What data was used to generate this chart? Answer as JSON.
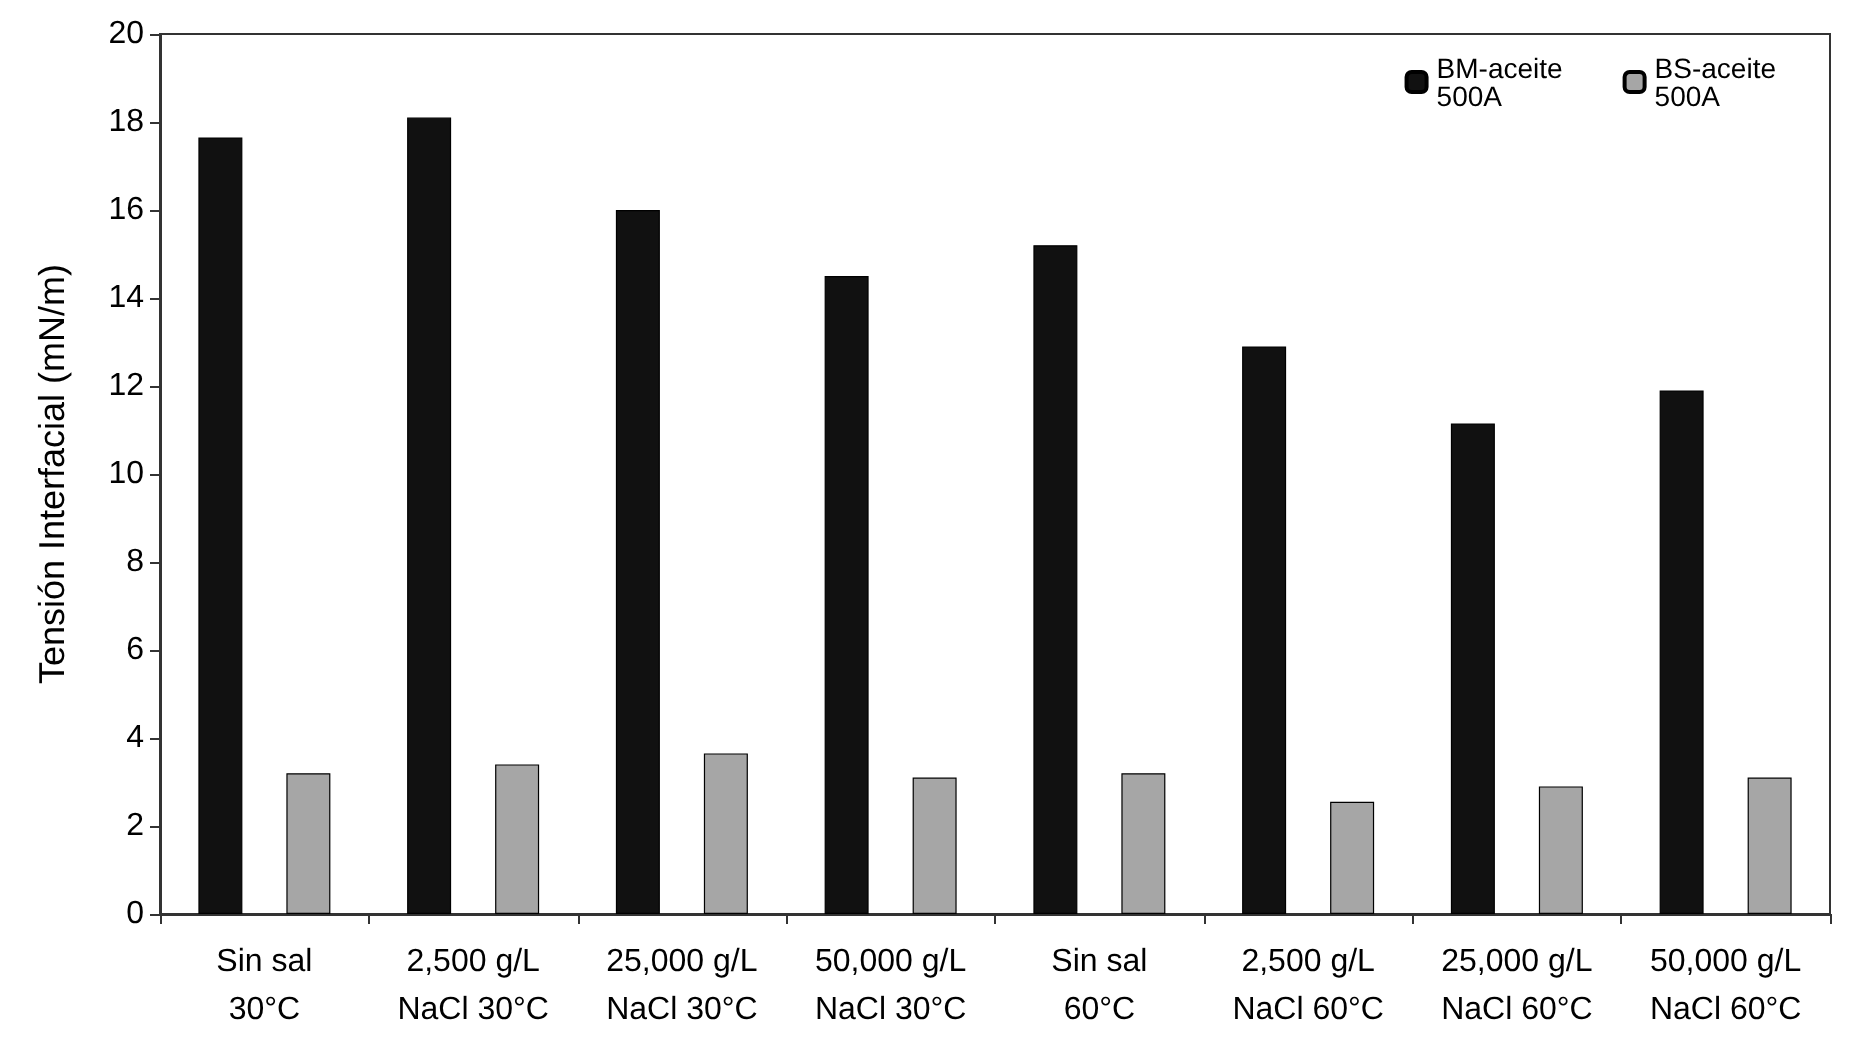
{
  "chart_data": {
    "type": "bar",
    "ylabel": "Tensión Interfacial (mN/m)",
    "categories": [
      "Sin sal\n30°C",
      "2,500 g/L\nNaCl 30°C",
      "25,000 g/L\nNaCl 30°C",
      "50,000 g/L\nNaCl 30°C",
      "Sin sal\n60°C",
      "2,500 g/L\nNaCl 60°C",
      "25,000 g/L\nNaCl 60°C",
      "50,000 g/L\nNaCl 60°C"
    ],
    "series": [
      {
        "name": "BM-aceite\n500A",
        "color": "#111111",
        "values": [
          17.65,
          18.1,
          16.0,
          14.5,
          15.2,
          12.9,
          11.15,
          11.9
        ]
      },
      {
        "name": "BS-aceite\n500A",
        "color": "#a6a6a6",
        "values": [
          3.2,
          3.4,
          3.65,
          3.1,
          3.2,
          2.55,
          2.9,
          3.1
        ]
      }
    ],
    "ylim": [
      0,
      20
    ],
    "yticks": [
      0,
      2,
      4,
      6,
      8,
      10,
      12,
      14,
      16,
      18,
      20
    ],
    "grid": false,
    "legend": "top right"
  }
}
